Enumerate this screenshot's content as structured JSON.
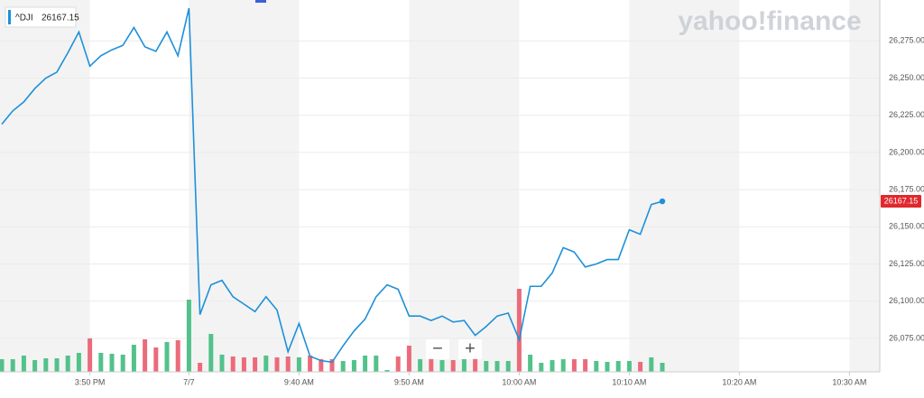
{
  "chart_data": {
    "type": "line",
    "watermark": "yahoo!finance",
    "zoom_controls": [
      "−",
      "+"
    ],
    "categories": [
      null,
      null,
      null,
      null,
      null,
      null,
      null,
      null,
      "3:50 PM",
      null,
      null,
      null,
      null,
      null,
      null,
      null,
      null,
      "7/7",
      null,
      null,
      null,
      null,
      null,
      null,
      null,
      null,
      null,
      "9:40 AM",
      null,
      null,
      null,
      null,
      null,
      null,
      null,
      null,
      null,
      "9:50 AM",
      null,
      null,
      null,
      null,
      null,
      null,
      null,
      null,
      null,
      "10:00 AM",
      null,
      null,
      null,
      null,
      null,
      null,
      null,
      null,
      null,
      "10:10 AM",
      null,
      null,
      null,
      null,
      null,
      null,
      null,
      null,
      null,
      "10:20 AM",
      null,
      null,
      null,
      null,
      null,
      null,
      null,
      null,
      null,
      "10:30 AM",
      null,
      null
    ],
    "series": [
      {
        "name": "^DJI",
        "color": "#1e90d8",
        "values": [
          26219,
          26228,
          26234,
          26243,
          26250,
          26254,
          26267,
          26281,
          26258,
          26265,
          26269,
          26272,
          26284,
          26271,
          26268,
          26281,
          26265,
          26297,
          26091,
          26111,
          26114,
          26103,
          26098,
          26093,
          26103,
          26094,
          26066,
          26085,
          26063,
          26060,
          26059,
          26070,
          26080,
          26088,
          26103,
          26111,
          26108,
          26090,
          26090,
          26087,
          26090,
          26086,
          26087,
          26077,
          26083,
          26090,
          26092,
          26074,
          26110,
          26110,
          26119,
          26136,
          26133,
          26123,
          26125,
          26128,
          26128,
          26148,
          26145,
          26165,
          26167.15,
          null,
          null,
          null,
          null,
          null,
          null,
          null,
          null,
          null,
          null,
          null,
          null,
          null,
          null,
          null,
          null,
          null,
          null,
          null
        ]
      }
    ],
    "volume": {
      "up_color": "#52c28a",
      "down_color": "#eb6b7a",
      "values": [
        14,
        14,
        18,
        13,
        15,
        15,
        18,
        21,
        37,
        21,
        20,
        19,
        30,
        36,
        27,
        33,
        35,
        80,
        10,
        42,
        19,
        17,
        16,
        16,
        18,
        16,
        17,
        16,
        18,
        14,
        14,
        12,
        13,
        18,
        18,
        2,
        17,
        29,
        14,
        15,
        13,
        13,
        14,
        15,
        12,
        12,
        12,
        92,
        19,
        10,
        13,
        14,
        14,
        14,
        12,
        11,
        12,
        12,
        11,
        16,
        10,
        null,
        null,
        null,
        null,
        null,
        null,
        null,
        null,
        null,
        null,
        null,
        null,
        null,
        null,
        null,
        null,
        null,
        null,
        null
      ]
    },
    "ylim": [
      26052.5,
      26302.5
    ],
    "yticks": [
      {
        "value": 26075,
        "label": "26,075.00"
      },
      {
        "value": 26100,
        "label": "26,100.00"
      },
      {
        "value": 26125,
        "label": "26,125.00"
      },
      {
        "value": 26150,
        "label": "26,150.00"
      },
      {
        "value": 26175,
        "label": "26,175.00"
      },
      {
        "value": 26200,
        "label": "26,200.00"
      },
      {
        "value": 26225,
        "label": "26,225.00"
      },
      {
        "value": 26250,
        "label": "26,250.00"
      },
      {
        "value": 26275,
        "label": "26,275.00"
      }
    ],
    "grid": true
  }
}
